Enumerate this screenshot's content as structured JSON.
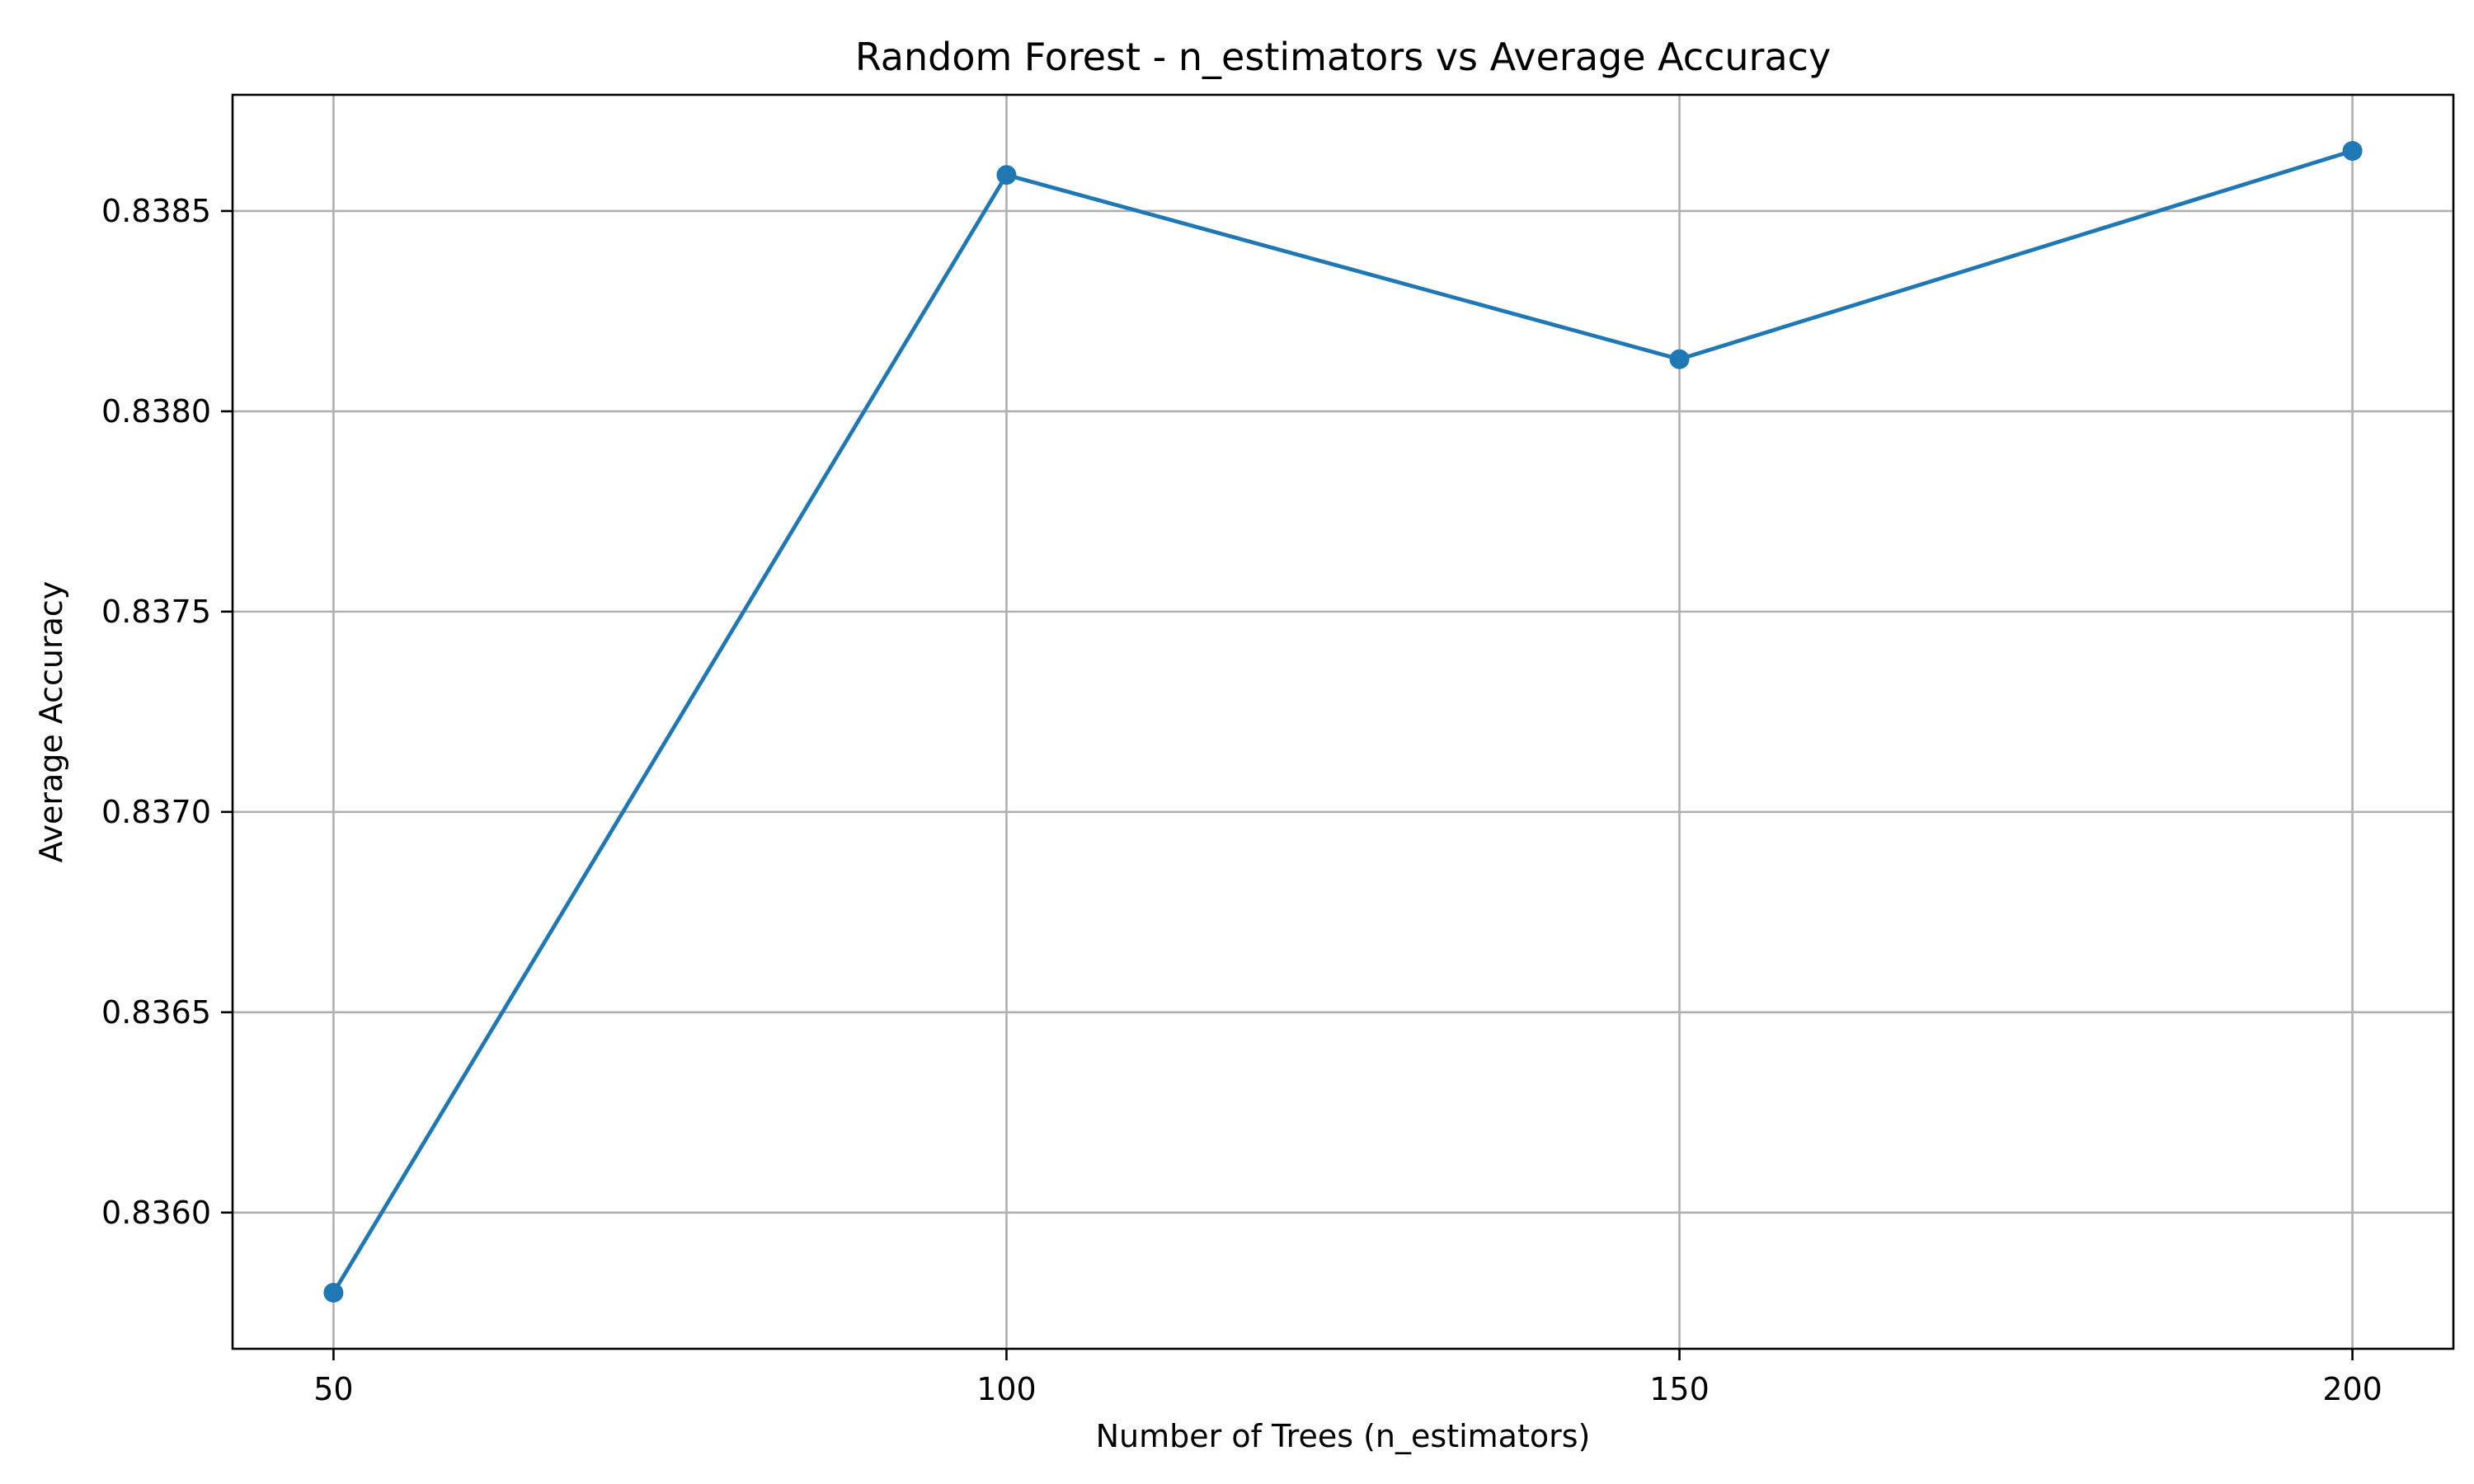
{
  "chart_data": {
    "type": "line",
    "title": "Random Forest - n_estimators vs Average Accuracy",
    "xlabel": "Number of Trees (n_estimators)",
    "ylabel": "Average Accuracy",
    "x": [
      50,
      100,
      150,
      200
    ],
    "series": [
      {
        "values": [
          0.8358,
          0.83859,
          0.83813,
          0.83865
        ],
        "color": "#1f77b4",
        "marker": "circle"
      }
    ],
    "xlim": [
      42.5,
      207.5
    ],
    "ylim": [
      0.83566,
      0.83879
    ],
    "xticks": [
      50,
      100,
      150,
      200
    ],
    "xtick_labels": [
      "50",
      "100",
      "150",
      "200"
    ],
    "yticks": [
      0.836,
      0.8365,
      0.837,
      0.8375,
      0.838,
      0.8385
    ],
    "ytick_labels": [
      "0.8360",
      "0.8365",
      "0.8370",
      "0.8375",
      "0.8380",
      "0.8385"
    ],
    "grid": true,
    "legend": false
  }
}
